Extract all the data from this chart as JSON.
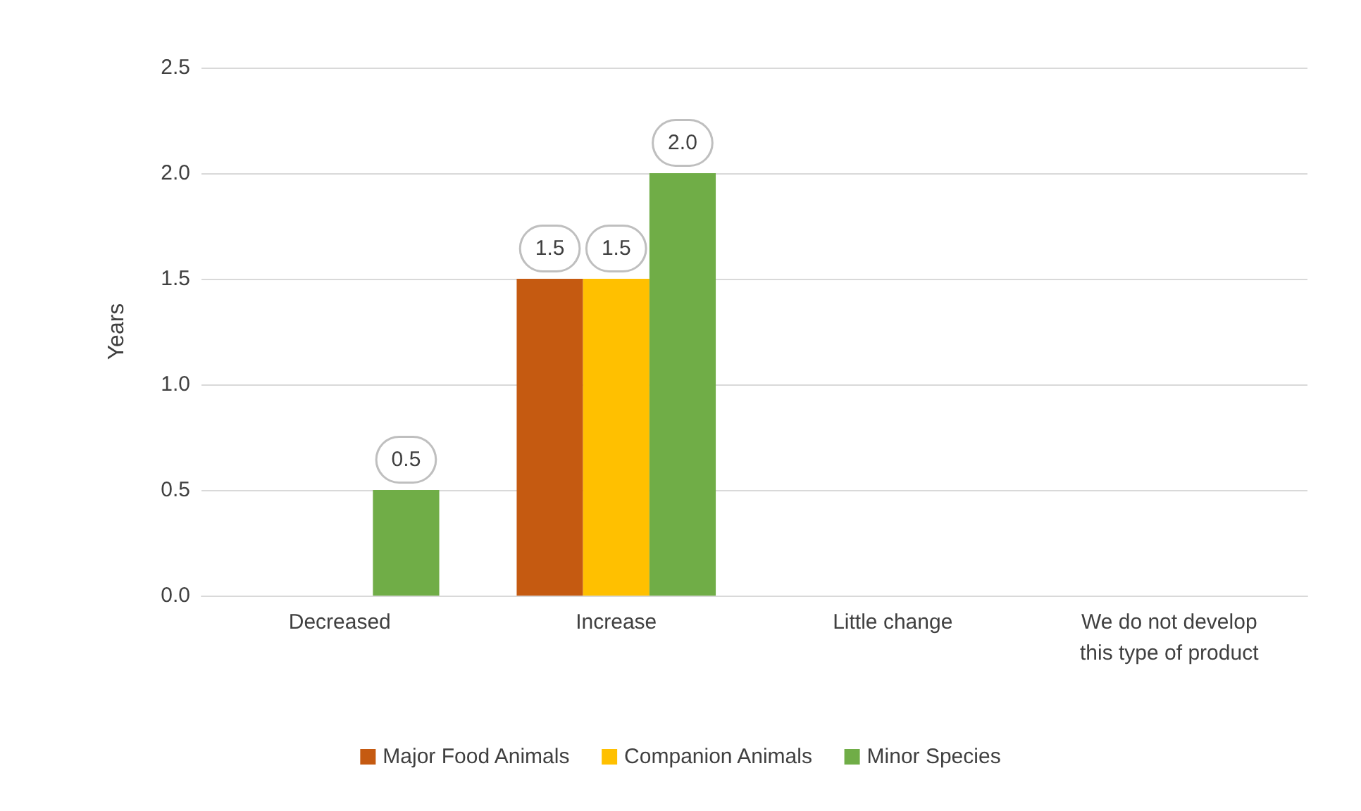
{
  "chart_data": {
    "type": "bar",
    "ylabel": "Years",
    "categories": [
      "Decreased",
      "Increase",
      "Little change",
      "We do not develop\nthis type of product"
    ],
    "series": [
      {
        "name": "Major Food Animals",
        "color": "#c55a11",
        "values": [
          null,
          1.5,
          null,
          null
        ],
        "value_labels": [
          null,
          "1.5",
          null,
          null
        ]
      },
      {
        "name": "Companion Animals",
        "color": "#ffc000",
        "values": [
          null,
          1.5,
          null,
          null
        ],
        "value_labels": [
          null,
          "1.5",
          null,
          null
        ]
      },
      {
        "name": "Minor Species",
        "color": "#70ad47",
        "values": [
          0.5,
          2.0,
          null,
          null
        ],
        "value_labels": [
          "0.5",
          "2.0",
          null,
          null
        ]
      }
    ],
    "ylim": [
      0,
      2.5
    ],
    "yticks": [
      {
        "value": 0,
        "label": "0.0"
      },
      {
        "value": 0.5,
        "label": "0.5"
      },
      {
        "value": 1,
        "label": "1.0"
      },
      {
        "value": 1.5,
        "label": "1.5"
      },
      {
        "value": 2,
        "label": "2.0"
      },
      {
        "value": 2.5,
        "label": "2.5"
      }
    ],
    "grid": "y",
    "legend": "bottom"
  }
}
